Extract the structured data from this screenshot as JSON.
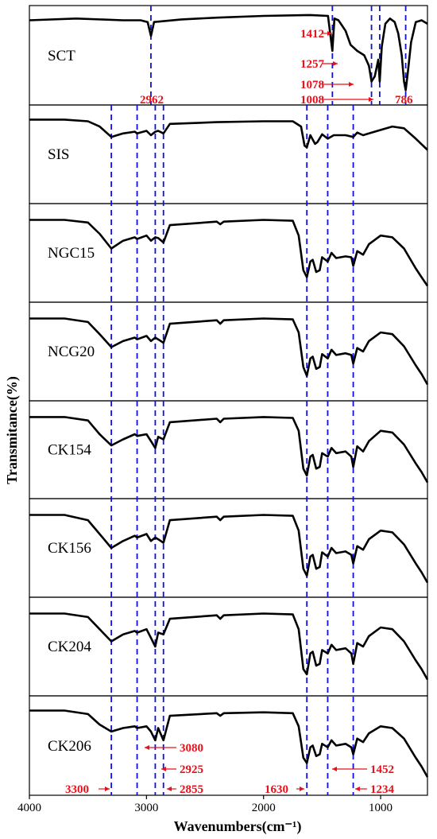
{
  "chart_data": {
    "type": "line",
    "title": "",
    "xlabel": "Wavenumbers(cm⁻¹)",
    "ylabel": "Transmitance(%)",
    "xlim": [
      4000,
      600
    ],
    "x_reversed": true,
    "x_ticks": [
      4000,
      3000,
      2000,
      1000
    ],
    "x_tick_labels": [
      "4000",
      "3000",
      "2000",
      "1000"
    ],
    "y_tick_labels_shown": false,
    "stacked_panels": true,
    "grid": false,
    "guide_lines": [
      3300,
      3080,
      2925,
      2855,
      1630,
      1452,
      1234
    ],
    "sct_guide_lines": [
      2962,
      1412,
      1078,
      1008,
      786
    ],
    "series": [
      {
        "name": "SCT",
        "x": [
          4000,
          3600,
          3200,
          3050,
          2990,
          2962,
          2935,
          2700,
          2400,
          2000,
          1600,
          1450,
          1412,
          1395,
          1360,
          1300,
          1257,
          1200,
          1140,
          1100,
          1078,
          1050,
          1020,
          1008,
          990,
          960,
          920,
          880,
          850,
          820,
          800,
          786,
          770,
          740,
          700,
          650,
          600
        ],
        "y": [
          0.9,
          0.92,
          0.9,
          0.9,
          0.88,
          0.72,
          0.88,
          0.91,
          0.93,
          0.95,
          0.96,
          0.95,
          0.55,
          0.92,
          0.9,
          0.78,
          0.62,
          0.55,
          0.5,
          0.38,
          0.2,
          0.26,
          0.45,
          0.2,
          0.6,
          0.86,
          0.92,
          0.88,
          0.75,
          0.5,
          0.2,
          0.1,
          0.28,
          0.65,
          0.88,
          0.9,
          0.86
        ]
      },
      {
        "name": "SIS",
        "x": [
          4000,
          3700,
          3500,
          3400,
          3300,
          3200,
          3100,
          3080,
          3000,
          2962,
          2925,
          2900,
          2855,
          2800,
          2400,
          2000,
          1750,
          1680,
          1650,
          1630,
          1600,
          1560,
          1540,
          1500,
          1452,
          1400,
          1300,
          1234,
          1200,
          1150,
          1100,
          1000,
          900,
          800,
          700,
          600
        ],
        "y": [
          0.9,
          0.9,
          0.88,
          0.82,
          0.7,
          0.74,
          0.76,
          0.74,
          0.77,
          0.72,
          0.76,
          0.77,
          0.74,
          0.85,
          0.87,
          0.88,
          0.88,
          0.82,
          0.6,
          0.58,
          0.72,
          0.62,
          0.64,
          0.73,
          0.68,
          0.72,
          0.72,
          0.7,
          0.75,
          0.72,
          0.74,
          0.78,
          0.82,
          0.8,
          0.68,
          0.55
        ]
      },
      {
        "name": "NGC15",
        "x": [
          4000,
          3700,
          3500,
          3400,
          3300,
          3200,
          3100,
          3080,
          3000,
          2962,
          2925,
          2900,
          2855,
          2800,
          2400,
          2370,
          2340,
          2000,
          1750,
          1700,
          1660,
          1630,
          1600,
          1580,
          1550,
          1520,
          1500,
          1452,
          1420,
          1380,
          1300,
          1250,
          1234,
          1200,
          1150,
          1100,
          1000,
          900,
          800,
          700,
          650,
          600
        ],
        "y": [
          0.88,
          0.88,
          0.85,
          0.72,
          0.55,
          0.64,
          0.68,
          0.66,
          0.7,
          0.64,
          0.68,
          0.67,
          0.62,
          0.82,
          0.86,
          0.83,
          0.86,
          0.88,
          0.87,
          0.7,
          0.3,
          0.22,
          0.4,
          0.42,
          0.28,
          0.3,
          0.45,
          0.4,
          0.5,
          0.44,
          0.46,
          0.45,
          0.35,
          0.52,
          0.48,
          0.6,
          0.7,
          0.68,
          0.55,
          0.32,
          0.22,
          0.12
        ]
      },
      {
        "name": "NCG20",
        "x": [
          4000,
          3700,
          3500,
          3400,
          3300,
          3200,
          3100,
          3080,
          3000,
          2962,
          2925,
          2900,
          2855,
          2800,
          2400,
          2370,
          2340,
          2000,
          1750,
          1700,
          1660,
          1630,
          1600,
          1580,
          1550,
          1520,
          1500,
          1452,
          1420,
          1380,
          1300,
          1250,
          1234,
          1200,
          1150,
          1100,
          1000,
          900,
          800,
          700,
          650,
          600
        ],
        "y": [
          0.88,
          0.88,
          0.84,
          0.7,
          0.55,
          0.62,
          0.66,
          0.64,
          0.68,
          0.62,
          0.66,
          0.64,
          0.6,
          0.82,
          0.86,
          0.82,
          0.86,
          0.88,
          0.87,
          0.72,
          0.32,
          0.22,
          0.42,
          0.44,
          0.3,
          0.32,
          0.47,
          0.42,
          0.52,
          0.46,
          0.48,
          0.46,
          0.36,
          0.54,
          0.5,
          0.62,
          0.72,
          0.7,
          0.56,
          0.34,
          0.24,
          0.12
        ]
      },
      {
        "name": "CK154",
        "x": [
          4000,
          3700,
          3500,
          3400,
          3300,
          3200,
          3100,
          3080,
          3000,
          2962,
          2925,
          2900,
          2855,
          2800,
          2400,
          2370,
          2340,
          2000,
          1750,
          1700,
          1660,
          1630,
          1600,
          1580,
          1550,
          1520,
          1500,
          1452,
          1420,
          1380,
          1300,
          1250,
          1234,
          1200,
          1150,
          1100,
          1000,
          900,
          800,
          700,
          650,
          600
        ],
        "y": [
          0.88,
          0.88,
          0.84,
          0.68,
          0.55,
          0.62,
          0.68,
          0.66,
          0.68,
          0.6,
          0.52,
          0.65,
          0.62,
          0.82,
          0.86,
          0.82,
          0.86,
          0.88,
          0.87,
          0.72,
          0.28,
          0.2,
          0.42,
          0.44,
          0.28,
          0.3,
          0.46,
          0.42,
          0.52,
          0.46,
          0.48,
          0.42,
          0.3,
          0.54,
          0.48,
          0.6,
          0.72,
          0.7,
          0.56,
          0.34,
          0.24,
          0.12
        ]
      },
      {
        "name": "CK156",
        "x": [
          4000,
          3700,
          3500,
          3400,
          3300,
          3200,
          3100,
          3080,
          3000,
          2962,
          2925,
          2900,
          2855,
          2800,
          2400,
          2370,
          2340,
          2000,
          1750,
          1700,
          1660,
          1630,
          1600,
          1580,
          1550,
          1520,
          1500,
          1452,
          1420,
          1380,
          1300,
          1250,
          1234,
          1200,
          1150,
          1100,
          1000,
          900,
          800,
          700,
          650,
          600
        ],
        "y": [
          0.88,
          0.88,
          0.82,
          0.66,
          0.5,
          0.58,
          0.64,
          0.62,
          0.66,
          0.58,
          0.62,
          0.6,
          0.56,
          0.82,
          0.86,
          0.82,
          0.86,
          0.88,
          0.87,
          0.7,
          0.26,
          0.18,
          0.4,
          0.42,
          0.26,
          0.28,
          0.45,
          0.4,
          0.5,
          0.44,
          0.46,
          0.42,
          0.32,
          0.52,
          0.48,
          0.6,
          0.7,
          0.68,
          0.54,
          0.32,
          0.22,
          0.1
        ]
      },
      {
        "name": "CK204",
        "x": [
          4000,
          3700,
          3500,
          3400,
          3300,
          3200,
          3100,
          3080,
          3000,
          2962,
          2925,
          2900,
          2855,
          2800,
          2400,
          2370,
          2340,
          2000,
          1750,
          1700,
          1660,
          1630,
          1600,
          1580,
          1550,
          1520,
          1500,
          1452,
          1420,
          1380,
          1300,
          1250,
          1234,
          1200,
          1150,
          1100,
          1000,
          900,
          800,
          700,
          650,
          600
        ],
        "y": [
          0.88,
          0.88,
          0.84,
          0.7,
          0.56,
          0.64,
          0.68,
          0.66,
          0.7,
          0.6,
          0.5,
          0.66,
          0.64,
          0.82,
          0.86,
          0.82,
          0.86,
          0.88,
          0.87,
          0.7,
          0.24,
          0.18,
          0.42,
          0.44,
          0.28,
          0.3,
          0.46,
          0.42,
          0.52,
          0.46,
          0.48,
          0.42,
          0.3,
          0.54,
          0.5,
          0.62,
          0.72,
          0.7,
          0.56,
          0.34,
          0.24,
          0.12
        ]
      },
      {
        "name": "CK206",
        "x": [
          4000,
          3700,
          3500,
          3400,
          3300,
          3200,
          3100,
          3080,
          3000,
          2962,
          2925,
          2900,
          2855,
          2800,
          2400,
          2370,
          2340,
          2000,
          1750,
          1700,
          1660,
          1630,
          1600,
          1580,
          1550,
          1520,
          1500,
          1452,
          1420,
          1380,
          1300,
          1250,
          1234,
          1200,
          1150,
          1100,
          1000,
          900,
          800,
          700,
          650,
          600
        ],
        "y": [
          0.9,
          0.9,
          0.86,
          0.74,
          0.66,
          0.7,
          0.72,
          0.7,
          0.72,
          0.66,
          0.56,
          0.7,
          0.56,
          0.84,
          0.87,
          0.84,
          0.87,
          0.88,
          0.87,
          0.72,
          0.36,
          0.3,
          0.48,
          0.5,
          0.38,
          0.4,
          0.52,
          0.48,
          0.56,
          0.5,
          0.52,
          0.48,
          0.4,
          0.58,
          0.54,
          0.64,
          0.72,
          0.7,
          0.58,
          0.36,
          0.26,
          0.14
        ]
      }
    ],
    "annotations": [
      {
        "text": "1412",
        "panel": "SCT",
        "arrow": "right"
      },
      {
        "text": "1257",
        "panel": "SCT",
        "arrow": "right"
      },
      {
        "text": "1078",
        "panel": "SCT",
        "arrow": "right"
      },
      {
        "text": "1008",
        "panel": "SCT",
        "arrow": "right"
      },
      {
        "text": "2962",
        "panel": "SCT",
        "arrow": "none"
      },
      {
        "text": "786",
        "panel": "SCT",
        "arrow": "none"
      },
      {
        "text": "3080",
        "panel": "CK206",
        "arrow": "left"
      },
      {
        "text": "2925",
        "panel": "CK206",
        "arrow": "left"
      },
      {
        "text": "2855",
        "panel": "CK206",
        "arrow": "left"
      },
      {
        "text": "3300",
        "panel": "CK206",
        "arrow": "right"
      },
      {
        "text": "1630",
        "panel": "CK206",
        "arrow": "right"
      },
      {
        "text": "1452",
        "panel": "CK206",
        "arrow": "left"
      },
      {
        "text": "1234",
        "panel": "CK206",
        "arrow": "left"
      }
    ]
  }
}
